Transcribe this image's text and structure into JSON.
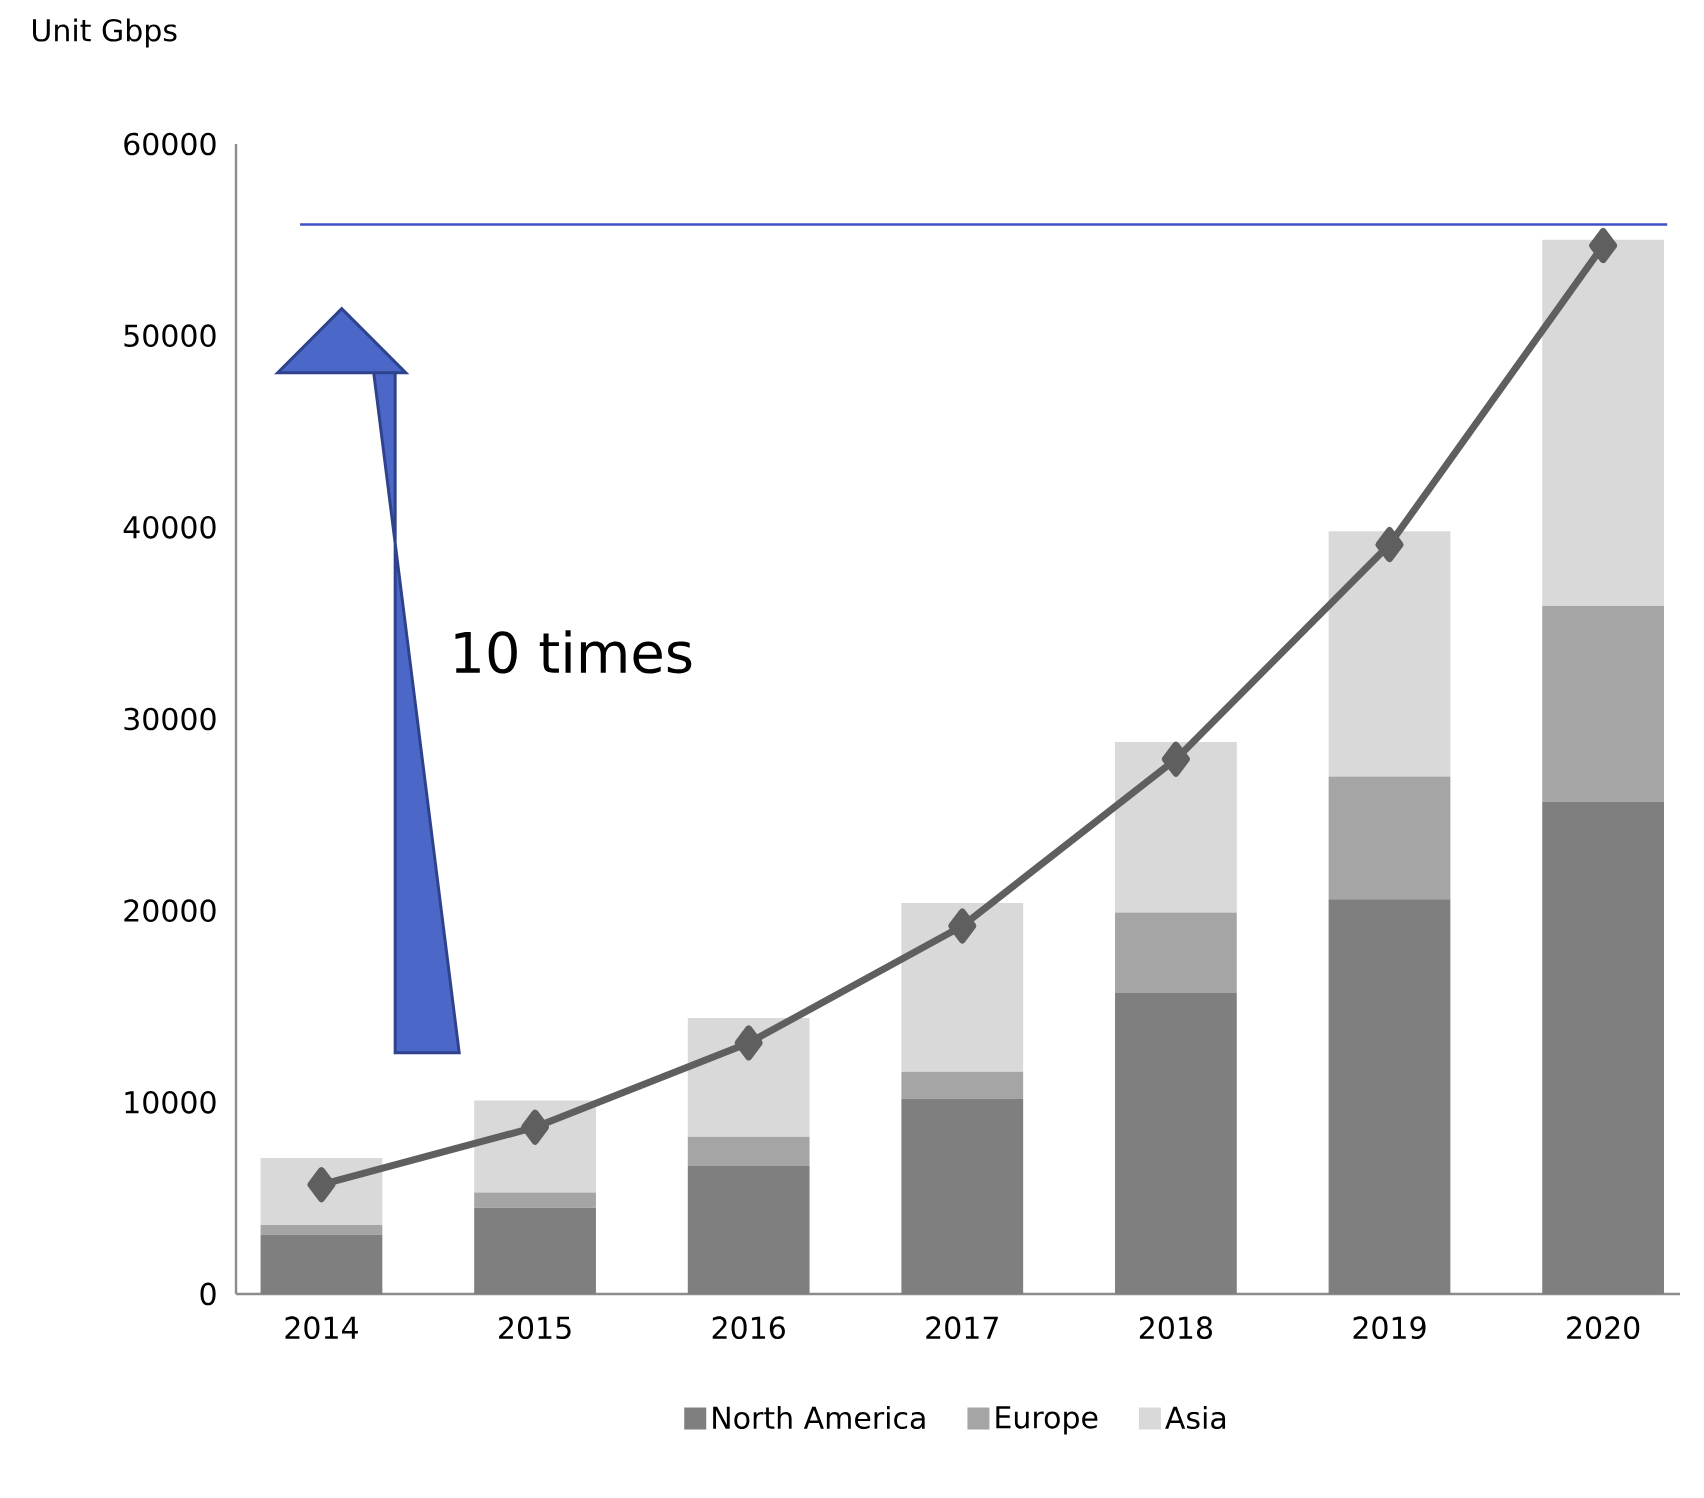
{
  "chart_data": {
    "type": "bar",
    "stacked": true,
    "ylabel": "Unit Gbps",
    "categories": [
      "2014",
      "2015",
      "2016",
      "2017",
      "2018",
      "2019",
      "2020"
    ],
    "series": [
      {
        "name": "North America",
        "color": "#7f7f7f",
        "values": [
          3100,
          4500,
          6700,
          10200,
          15700,
          20600,
          25700
        ]
      },
      {
        "name": "Europe",
        "color": "#a5a5a5",
        "values": [
          500,
          800,
          1500,
          1400,
          4200,
          6400,
          10200
        ]
      },
      {
        "name": "Asia",
        "color": "#d9d9d9",
        "values": [
          3500,
          4800,
          6200,
          8800,
          8900,
          12800,
          19100
        ]
      },
      {
        "type": "line",
        "color": "#5f5f5f",
        "marker": "diamond",
        "values": [
          5700,
          8700,
          13100,
          19200,
          27900,
          39100,
          54700
        ]
      }
    ],
    "ylim": [
      0,
      60000
    ],
    "yticks": [
      0,
      10000,
      20000,
      30000,
      40000,
      50000,
      60000
    ],
    "ref_lines": [
      {
        "axis": "y",
        "value": 55800,
        "color": "#3f51c4"
      }
    ],
    "annotations": [
      "10 times"
    ],
    "legend": "bottom",
    "grid": false
  }
}
